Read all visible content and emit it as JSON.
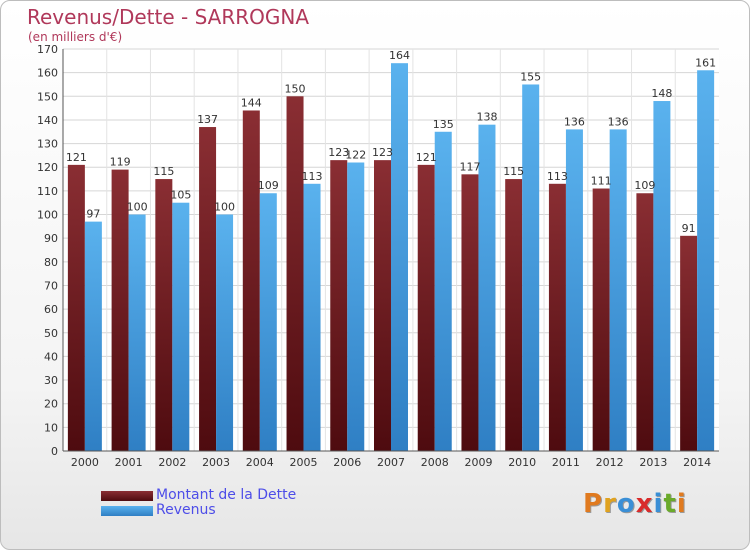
{
  "header": {
    "title": "Revenus/Dette - SARROGNA",
    "subtitle": "(en milliers d'€)"
  },
  "legend": {
    "items": [
      {
        "label": "Montant de la Dette",
        "color": "#6b1a1f"
      },
      {
        "label": "Revenus",
        "color": "#4aa3e3"
      }
    ]
  },
  "logo": {
    "letters": [
      "P",
      "r",
      "o",
      "x",
      "i",
      "t",
      "i"
    ],
    "colors": [
      "#e07a1f",
      "#e0a21f",
      "#3a8fd6",
      "#d92b2b",
      "#3a8fd6",
      "#6aaa2a",
      "#e07a1f"
    ]
  },
  "chart_data": {
    "type": "bar",
    "categories": [
      "2000",
      "2001",
      "2002",
      "2003",
      "2004",
      "2005",
      "2006",
      "2007",
      "2008",
      "2009",
      "2010",
      "2011",
      "2012",
      "2013",
      "2014"
    ],
    "series": [
      {
        "name": "Montant de la Dette",
        "color": "#7a2226",
        "values": [
          121,
          119,
          115,
          137,
          144,
          150,
          123,
          123,
          121,
          117,
          115,
          113,
          111,
          109,
          91
        ]
      },
      {
        "name": "Revenus",
        "color": "#4aa3e3",
        "values": [
          97,
          100,
          105,
          100,
          109,
          113,
          122,
          164,
          135,
          138,
          155,
          136,
          136,
          148,
          161
        ]
      }
    ],
    "ylim": [
      0,
      170
    ],
    "yticks": [
      0,
      10,
      20,
      30,
      40,
      50,
      60,
      70,
      80,
      90,
      100,
      110,
      120,
      130,
      140,
      150,
      160,
      170
    ],
    "grid": true,
    "legend_position": "bottom-left"
  }
}
